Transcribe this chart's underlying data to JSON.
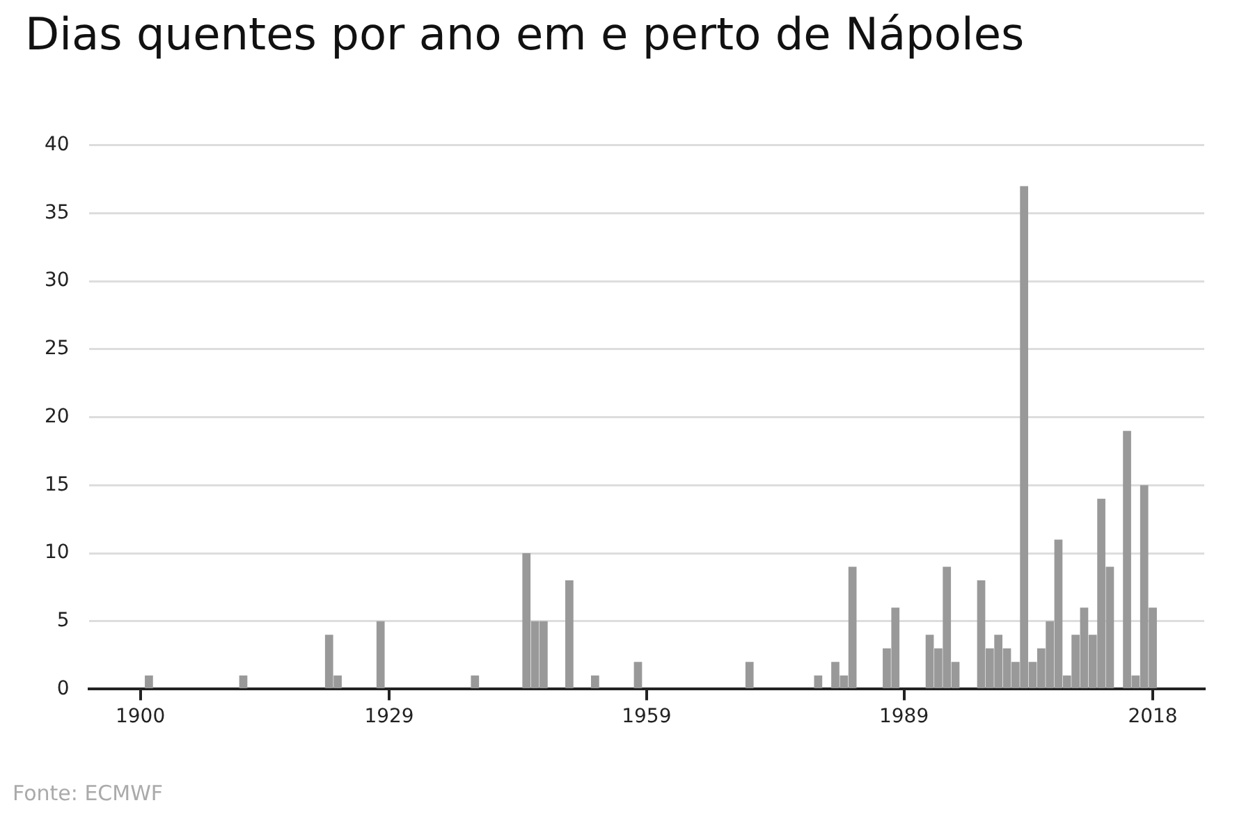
{
  "chart_data": {
    "type": "bar",
    "title": "Dias quentes por ano em e perto de Nápoles",
    "x": [
      1901,
      1912,
      1922,
      1923,
      1928,
      1939,
      1945,
      1946,
      1947,
      1950,
      1953,
      1958,
      1971,
      1979,
      1981,
      1982,
      1983,
      1987,
      1988,
      1992,
      1993,
      1994,
      1995,
      1998,
      1999,
      2000,
      2001,
      2002,
      2003,
      2004,
      2005,
      2006,
      2007,
      2008,
      2009,
      2010,
      2011,
      2012,
      2013,
      2015,
      2016,
      2017,
      2018
    ],
    "values": [
      1,
      1,
      4,
      1,
      5,
      1,
      10,
      5,
      5,
      8,
      1,
      2,
      2,
      1,
      2,
      1,
      9,
      3,
      6,
      4,
      3,
      9,
      2,
      8,
      3,
      4,
      3,
      2,
      37,
      2,
      3,
      5,
      11,
      1,
      4,
      6,
      4,
      14,
      9,
      19,
      1,
      15,
      6
    ],
    "color": "#999999",
    "xlim": [
      1894,
      2024
    ],
    "xticks": [
      1900,
      1929,
      1959,
      1989,
      2018
    ],
    "ylim": [
      0,
      40
    ],
    "yticks": [
      0,
      5,
      10,
      15,
      20,
      25,
      30,
      35,
      40
    ],
    "grid": "y",
    "annotations": [
      "Fonte: ECMWF"
    ]
  }
}
